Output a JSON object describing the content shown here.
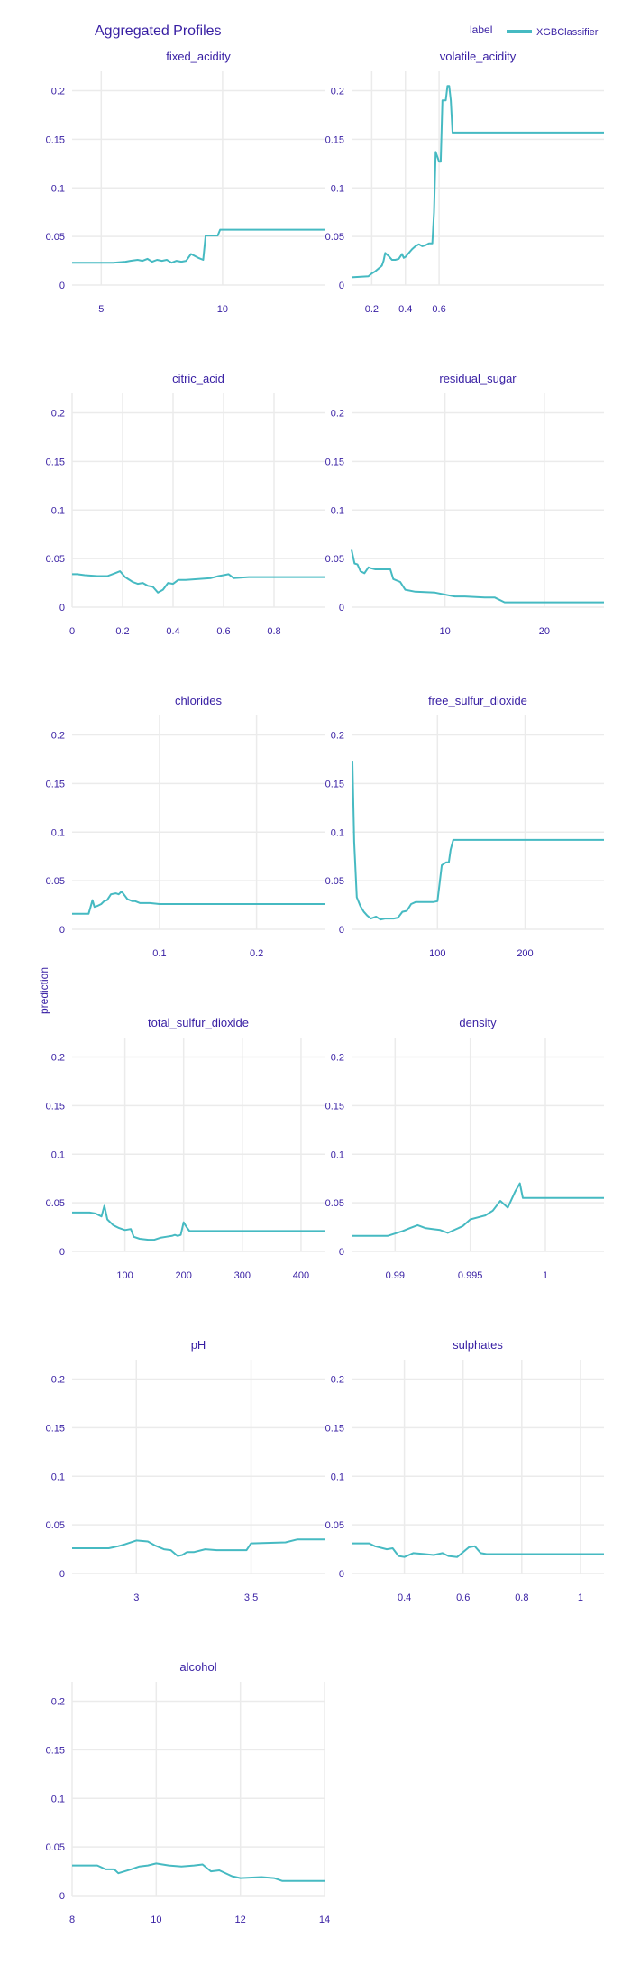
{
  "title": "Aggregated Profiles",
  "ylabel": "prediction",
  "legend": {
    "title": "label",
    "entries": [
      {
        "name": "XGBClassifier",
        "color": "#46bac2"
      }
    ]
  },
  "chart_data": [
    {
      "type": "line",
      "title": "fixed_acidity",
      "xlim": [
        3.8,
        14.2
      ],
      "ylim": [
        0,
        0.22
      ],
      "xticks": [
        5,
        10
      ],
      "xtick_labels": [
        "5",
        "10"
      ],
      "yticks": [
        0,
        0.05,
        0.1,
        0.15,
        0.2
      ],
      "ytick_labels": [
        "0",
        "0.05",
        "0.1",
        "0.15",
        "0.2"
      ],
      "series": [
        {
          "name": "XGBClassifier",
          "x": [
            3.8,
            5.5,
            6.0,
            6.2,
            6.5,
            6.7,
            6.9,
            7.1,
            7.3,
            7.5,
            7.7,
            7.9,
            8.1,
            8.3,
            8.5,
            8.7,
            9.0,
            9.2,
            9.3,
            9.5,
            9.8,
            9.9,
            14.2
          ],
          "y": [
            0.023,
            0.023,
            0.024,
            0.025,
            0.026,
            0.025,
            0.027,
            0.024,
            0.026,
            0.025,
            0.026,
            0.023,
            0.025,
            0.024,
            0.025,
            0.032,
            0.028,
            0.026,
            0.051,
            0.051,
            0.051,
            0.057,
            0.057
          ]
        }
      ]
    },
    {
      "type": "line",
      "title": "volatile_acidity",
      "xlim": [
        0.08,
        1.58
      ],
      "ylim": [
        0,
        0.22
      ],
      "xticks": [
        0.2,
        0.4,
        0.6
      ],
      "xtick_labels": [
        "0.2",
        "0.4",
        "0.6"
      ],
      "yticks": [
        0,
        0.05,
        0.1,
        0.15,
        0.2
      ],
      "ytick_labels": [
        "0",
        "0.05",
        "0.1",
        "0.15",
        "0.2"
      ],
      "series": [
        {
          "name": "XGBClassifier",
          "x": [
            0.08,
            0.18,
            0.2,
            0.22,
            0.24,
            0.26,
            0.27,
            0.28,
            0.3,
            0.32,
            0.34,
            0.36,
            0.38,
            0.39,
            0.4,
            0.42,
            0.44,
            0.46,
            0.48,
            0.5,
            0.52,
            0.54,
            0.56,
            0.57,
            0.58,
            0.6,
            0.61,
            0.62,
            0.64,
            0.65,
            0.66,
            0.67,
            0.68,
            1.58
          ],
          "y": [
            0.008,
            0.009,
            0.012,
            0.014,
            0.017,
            0.02,
            0.025,
            0.033,
            0.03,
            0.026,
            0.026,
            0.027,
            0.032,
            0.028,
            0.029,
            0.033,
            0.037,
            0.04,
            0.042,
            0.04,
            0.041,
            0.043,
            0.043,
            0.075,
            0.137,
            0.127,
            0.127,
            0.19,
            0.19,
            0.205,
            0.205,
            0.19,
            0.157,
            0.157
          ]
        }
      ]
    },
    {
      "type": "line",
      "title": "citric_acid",
      "xlim": [
        0,
        1.0
      ],
      "ylim": [
        0,
        0.22
      ],
      "xticks": [
        0,
        0.2,
        0.4,
        0.6,
        0.8
      ],
      "xtick_labels": [
        "0",
        "0.2",
        "0.4",
        "0.6",
        "0.8"
      ],
      "yticks": [
        0,
        0.05,
        0.1,
        0.15,
        0.2
      ],
      "ytick_labels": [
        "0",
        "0.05",
        "0.1",
        "0.15",
        "0.2"
      ],
      "series": [
        {
          "name": "XGBClassifier",
          "x": [
            0,
            0.02,
            0.05,
            0.1,
            0.14,
            0.17,
            0.19,
            0.21,
            0.24,
            0.26,
            0.28,
            0.3,
            0.32,
            0.34,
            0.36,
            0.38,
            0.4,
            0.42,
            0.45,
            0.5,
            0.55,
            0.58,
            0.6,
            0.62,
            0.64,
            0.7,
            1.0
          ],
          "y": [
            0.034,
            0.034,
            0.033,
            0.032,
            0.032,
            0.035,
            0.037,
            0.031,
            0.026,
            0.024,
            0.025,
            0.022,
            0.021,
            0.015,
            0.018,
            0.025,
            0.024,
            0.028,
            0.028,
            0.029,
            0.03,
            0.032,
            0.033,
            0.034,
            0.03,
            0.031,
            0.031
          ]
        }
      ]
    },
    {
      "type": "line",
      "title": "residual_sugar",
      "xlim": [
        0.6,
        26.0
      ],
      "ylim": [
        0,
        0.22
      ],
      "xticks": [
        10,
        20
      ],
      "xtick_labels": [
        "10",
        "20"
      ],
      "yticks": [
        0,
        0.05,
        0.1,
        0.15,
        0.2
      ],
      "ytick_labels": [
        "0",
        "0.05",
        "0.1",
        "0.15",
        "0.2"
      ],
      "series": [
        {
          "name": "XGBClassifier",
          "x": [
            0.6,
            0.9,
            1.2,
            1.5,
            1.9,
            2.3,
            2.6,
            3.0,
            4.0,
            4.5,
            4.8,
            5.5,
            6.0,
            7.0,
            9.0,
            10.5,
            11.0,
            12.0,
            14.0,
            15.0,
            16.0,
            26.0
          ],
          "y": [
            0.059,
            0.045,
            0.044,
            0.037,
            0.035,
            0.041,
            0.04,
            0.039,
            0.039,
            0.039,
            0.029,
            0.026,
            0.018,
            0.016,
            0.015,
            0.012,
            0.011,
            0.011,
            0.01,
            0.01,
            0.005,
            0.005
          ]
        }
      ]
    },
    {
      "type": "line",
      "title": "chlorides",
      "xlim": [
        0.01,
        0.27
      ],
      "ylim": [
        0,
        0.22
      ],
      "xticks": [
        0.1,
        0.2
      ],
      "xtick_labels": [
        "0.1",
        "0.2"
      ],
      "yticks": [
        0,
        0.05,
        0.1,
        0.15,
        0.2
      ],
      "ytick_labels": [
        "0",
        "0.05",
        "0.1",
        "0.15",
        "0.2"
      ],
      "series": [
        {
          "name": "XGBClassifier",
          "x": [
            0.01,
            0.027,
            0.029,
            0.031,
            0.033,
            0.036,
            0.04,
            0.043,
            0.046,
            0.05,
            0.055,
            0.058,
            0.061,
            0.064,
            0.067,
            0.072,
            0.075,
            0.08,
            0.085,
            0.09,
            0.1,
            0.27
          ],
          "y": [
            0.016,
            0.016,
            0.023,
            0.03,
            0.023,
            0.024,
            0.026,
            0.029,
            0.03,
            0.036,
            0.037,
            0.036,
            0.039,
            0.035,
            0.031,
            0.029,
            0.029,
            0.027,
            0.027,
            0.027,
            0.026,
            0.026
          ]
        }
      ]
    },
    {
      "type": "line",
      "title": "free_sulfur_dioxide",
      "xlim": [
        2,
        290
      ],
      "ylim": [
        0,
        0.22
      ],
      "xticks": [
        100,
        200
      ],
      "xtick_labels": [
        "100",
        "200"
      ],
      "yticks": [
        0,
        0.05,
        0.1,
        0.15,
        0.2
      ],
      "ytick_labels": [
        "0",
        "0.05",
        "0.1",
        "0.15",
        "0.2"
      ],
      "series": [
        {
          "name": "XGBClassifier",
          "x": [
            2,
            3,
            5,
            8,
            12,
            16,
            20,
            24,
            30,
            35,
            40,
            50,
            55,
            60,
            65,
            70,
            75,
            85,
            95,
            100,
            105,
            110,
            113,
            115,
            118,
            290
          ],
          "y": [
            0.172,
            0.172,
            0.09,
            0.033,
            0.024,
            0.018,
            0.014,
            0.011,
            0.013,
            0.01,
            0.011,
            0.011,
            0.012,
            0.018,
            0.019,
            0.026,
            0.028,
            0.028,
            0.028,
            0.029,
            0.066,
            0.069,
            0.069,
            0.082,
            0.092,
            0.092
          ]
        }
      ]
    },
    {
      "type": "line",
      "title": "total_sulfur_dioxide",
      "xlim": [
        10,
        440
      ],
      "ylim": [
        0,
        0.22
      ],
      "xticks": [
        100,
        200,
        300,
        400
      ],
      "xtick_labels": [
        "100",
        "200",
        "300",
        "400"
      ],
      "yticks": [
        0,
        0.05,
        0.1,
        0.15,
        0.2
      ],
      "ytick_labels": [
        "0",
        "0.05",
        "0.1",
        "0.15",
        "0.2"
      ],
      "series": [
        {
          "name": "XGBClassifier",
          "x": [
            10,
            40,
            50,
            60,
            65,
            70,
            80,
            90,
            100,
            110,
            115,
            125,
            140,
            150,
            160,
            170,
            180,
            185,
            190,
            195,
            200,
            205,
            210,
            440
          ],
          "y": [
            0.04,
            0.04,
            0.039,
            0.036,
            0.047,
            0.033,
            0.027,
            0.024,
            0.022,
            0.023,
            0.015,
            0.013,
            0.012,
            0.012,
            0.014,
            0.015,
            0.016,
            0.017,
            0.016,
            0.017,
            0.03,
            0.025,
            0.021,
            0.021
          ]
        }
      ]
    },
    {
      "type": "line",
      "title": "density",
      "xlim": [
        0.9871,
        1.0039
      ],
      "ylim": [
        0,
        0.22
      ],
      "xticks": [
        0.99,
        0.995,
        1
      ],
      "xtick_labels": [
        "0.99",
        "0.995",
        "1"
      ],
      "yticks": [
        0,
        0.05,
        0.1,
        0.15,
        0.2
      ],
      "ytick_labels": [
        "0",
        "0.05",
        "0.1",
        "0.15",
        "0.2"
      ],
      "series": [
        {
          "name": "XGBClassifier",
          "x": [
            0.9871,
            0.9895,
            0.9905,
            0.991,
            0.9915,
            0.992,
            0.9925,
            0.993,
            0.9935,
            0.9945,
            0.995,
            0.9955,
            0.996,
            0.9965,
            0.997,
            0.9975,
            0.998,
            0.9983,
            0.9985,
            1.0039
          ],
          "y": [
            0.016,
            0.016,
            0.021,
            0.024,
            0.027,
            0.024,
            0.023,
            0.022,
            0.019,
            0.026,
            0.033,
            0.035,
            0.037,
            0.042,
            0.052,
            0.045,
            0.062,
            0.07,
            0.055,
            0.055
          ]
        }
      ]
    },
    {
      "type": "line",
      "title": "pH",
      "xlim": [
        2.72,
        3.82
      ],
      "ylim": [
        0,
        0.22
      ],
      "xticks": [
        3,
        3.5
      ],
      "xtick_labels": [
        "3",
        "3.5"
      ],
      "yticks": [
        0,
        0.05,
        0.1,
        0.15,
        0.2
      ],
      "ytick_labels": [
        "0",
        "0.05",
        "0.1",
        "0.15",
        "0.2"
      ],
      "series": [
        {
          "name": "XGBClassifier",
          "x": [
            2.72,
            2.88,
            2.92,
            2.95,
            3.0,
            3.05,
            3.08,
            3.12,
            3.15,
            3.18,
            3.2,
            3.22,
            3.25,
            3.3,
            3.35,
            3.4,
            3.48,
            3.5,
            3.65,
            3.7,
            3.82
          ],
          "y": [
            0.026,
            0.026,
            0.028,
            0.03,
            0.034,
            0.033,
            0.029,
            0.025,
            0.024,
            0.018,
            0.019,
            0.022,
            0.022,
            0.025,
            0.024,
            0.024,
            0.024,
            0.031,
            0.032,
            0.035,
            0.035
          ]
        }
      ]
    },
    {
      "type": "line",
      "title": "sulphates",
      "xlim": [
        0.22,
        1.08
      ],
      "ylim": [
        0,
        0.22
      ],
      "xticks": [
        0.4,
        0.6,
        0.8,
        1
      ],
      "xtick_labels": [
        "0.4",
        "0.6",
        "0.8",
        "1"
      ],
      "yticks": [
        0,
        0.05,
        0.1,
        0.15,
        0.2
      ],
      "ytick_labels": [
        "0",
        "0.05",
        "0.1",
        "0.15",
        "0.2"
      ],
      "series": [
        {
          "name": "XGBClassifier",
          "x": [
            0.22,
            0.28,
            0.3,
            0.34,
            0.36,
            0.38,
            0.4,
            0.43,
            0.47,
            0.5,
            0.53,
            0.55,
            0.58,
            0.62,
            0.64,
            0.66,
            0.68,
            1.08
          ],
          "y": [
            0.031,
            0.031,
            0.028,
            0.025,
            0.026,
            0.018,
            0.017,
            0.021,
            0.02,
            0.019,
            0.021,
            0.018,
            0.017,
            0.027,
            0.028,
            0.021,
            0.02,
            0.02
          ]
        }
      ]
    },
    {
      "type": "line",
      "title": "alcohol",
      "xlim": [
        8,
        14
      ],
      "ylim": [
        0,
        0.22
      ],
      "xticks": [
        8,
        10,
        12,
        14
      ],
      "xtick_labels": [
        "8",
        "10",
        "12",
        "14"
      ],
      "yticks": [
        0,
        0.05,
        0.1,
        0.15,
        0.2
      ],
      "ytick_labels": [
        "0",
        "0.05",
        "0.1",
        "0.15",
        "0.2"
      ],
      "series": [
        {
          "name": "XGBClassifier",
          "x": [
            8,
            8.6,
            8.8,
            9.0,
            9.1,
            9.4,
            9.6,
            9.8,
            10.0,
            10.3,
            10.6,
            10.9,
            11.1,
            11.3,
            11.5,
            11.8,
            12.0,
            12.5,
            12.8,
            13.0,
            14
          ],
          "y": [
            0.031,
            0.031,
            0.027,
            0.027,
            0.023,
            0.027,
            0.03,
            0.031,
            0.033,
            0.031,
            0.03,
            0.031,
            0.032,
            0.025,
            0.026,
            0.02,
            0.018,
            0.019,
            0.018,
            0.015,
            0.015
          ]
        }
      ]
    }
  ]
}
